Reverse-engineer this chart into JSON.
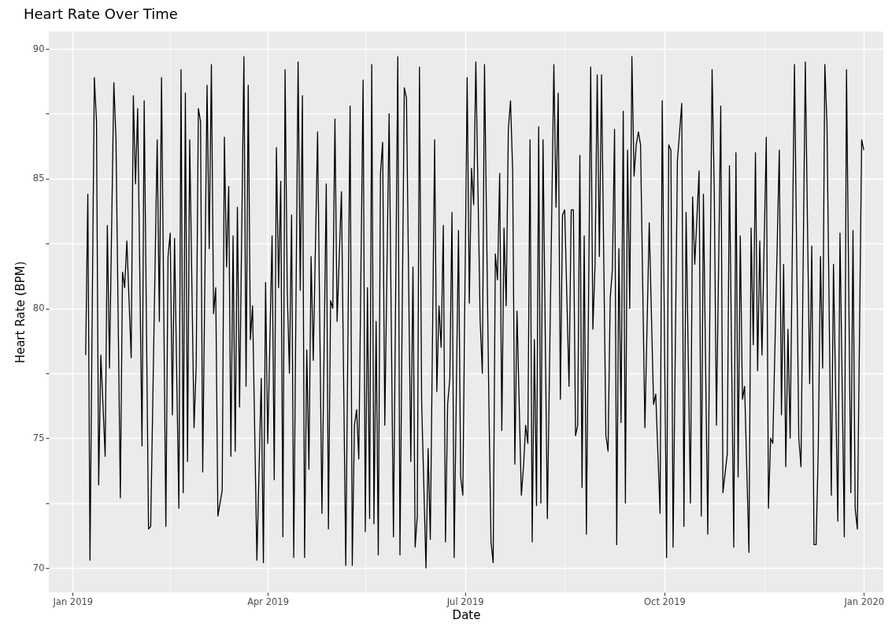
{
  "chart_data": {
    "type": "line",
    "title": "Heart Rate Over Time",
    "xlabel": "Date",
    "ylabel": "Heart Rate (BPM)",
    "xlim": [
      "2018-12-21",
      "2020-01-10"
    ],
    "xticks": [
      {
        "value": "2019-01-01",
        "label": "Jan 2019"
      },
      {
        "value": "2019-02-15",
        "label": null
      },
      {
        "value": "2019-04-01",
        "label": "Apr 2019"
      },
      {
        "value": "2019-05-16",
        "label": null
      },
      {
        "value": "2019-07-01",
        "label": "Jul 2019"
      },
      {
        "value": "2019-08-16",
        "label": null
      },
      {
        "value": "2019-10-01",
        "label": "Oct 2019"
      },
      {
        "value": "2019-11-16",
        "label": null
      },
      {
        "value": "2020-01-01",
        "label": "Jan 2020"
      }
    ],
    "ylim": [
      69.06,
      90.67
    ],
    "yticks": [
      70,
      {
        "value": 72.5,
        "label": null
      },
      75,
      {
        "value": 77.5,
        "label": null
      },
      80,
      {
        "value": 82.5,
        "label": null
      },
      85,
      {
        "value": 87.5,
        "label": null
      },
      90
    ],
    "grid": true,
    "legend": false,
    "series": [
      {
        "color": "#000000",
        "x": [
          "2019-01-07",
          "2019-01-08",
          "2019-01-09",
          "2019-01-11",
          "2019-01-12",
          "2019-01-13",
          "2019-01-14",
          "2019-01-16",
          "2019-01-17",
          "2019-01-18",
          "2019-01-20",
          "2019-01-21",
          "2019-01-23",
          "2019-01-24",
          "2019-01-25",
          "2019-01-26",
          "2019-01-28",
          "2019-01-29",
          "2019-01-30",
          "2019-01-31",
          "2019-02-02",
          "2019-02-03",
          "2019-02-05",
          "2019-02-06",
          "2019-02-09",
          "2019-02-10",
          "2019-02-11",
          "2019-02-13",
          "2019-02-14",
          "2019-02-15",
          "2019-02-16",
          "2019-02-17",
          "2019-02-19",
          "2019-02-20",
          "2019-02-21",
          "2019-02-22",
          "2019-02-23",
          "2019-02-24",
          "2019-02-26",
          "2019-02-27",
          "2019-02-28",
          "2019-03-01",
          "2019-03-02",
          "2019-03-04",
          "2019-03-05",
          "2019-03-06",
          "2019-03-07",
          "2019-03-08",
          "2019-03-09",
          "2019-03-11",
          "2019-03-12",
          "2019-03-13",
          "2019-03-14",
          "2019-03-15",
          "2019-03-16",
          "2019-03-17",
          "2019-03-18",
          "2019-03-19",
          "2019-03-21",
          "2019-03-22",
          "2019-03-23",
          "2019-03-24",
          "2019-03-25",
          "2019-03-27",
          "2019-03-29",
          "2019-03-30",
          "2019-03-31",
          "2019-04-01",
          "2019-04-03",
          "2019-04-04",
          "2019-04-05",
          "2019-04-06",
          "2019-04-07",
          "2019-04-08",
          "2019-04-09",
          "2019-04-10",
          "2019-04-11",
          "2019-04-12",
          "2019-04-13",
          "2019-04-15",
          "2019-04-16",
          "2019-04-17",
          "2019-04-18",
          "2019-04-19",
          "2019-04-20",
          "2019-04-21",
          "2019-04-22",
          "2019-04-24",
          "2019-04-26",
          "2019-04-28",
          "2019-04-29",
          "2019-04-30",
          "2019-05-01",
          "2019-05-02",
          "2019-05-03",
          "2019-05-05",
          "2019-05-07",
          "2019-05-09",
          "2019-05-10",
          "2019-05-11",
          "2019-05-12",
          "2019-05-13",
          "2019-05-15",
          "2019-05-16",
          "2019-05-17",
          "2019-05-18",
          "2019-05-19",
          "2019-05-20",
          "2019-05-21",
          "2019-05-22",
          "2019-05-23",
          "2019-05-24",
          "2019-05-25",
          "2019-05-27",
          "2019-05-29",
          "2019-05-31",
          "2019-06-01",
          "2019-06-03",
          "2019-06-04",
          "2019-06-06",
          "2019-06-07",
          "2019-06-08",
          "2019-06-09",
          "2019-06-10",
          "2019-06-11",
          "2019-06-13",
          "2019-06-14",
          "2019-06-15",
          "2019-06-17",
          "2019-06-18",
          "2019-06-19",
          "2019-06-20",
          "2019-06-21",
          "2019-06-22",
          "2019-06-23",
          "2019-06-24",
          "2019-06-25",
          "2019-06-26",
          "2019-06-28",
          "2019-06-29",
          "2019-06-30",
          "2019-07-02",
          "2019-07-03",
          "2019-07-04",
          "2019-07-05",
          "2019-07-06",
          "2019-07-08",
          "2019-07-09",
          "2019-07-10",
          "2019-07-12",
          "2019-07-13",
          "2019-07-14",
          "2019-07-15",
          "2019-07-16",
          "2019-07-17",
          "2019-07-18",
          "2019-07-19",
          "2019-07-20",
          "2019-07-21",
          "2019-07-22",
          "2019-07-23",
          "2019-07-24",
          "2019-07-25",
          "2019-07-27",
          "2019-07-28",
          "2019-07-29",
          "2019-07-30",
          "2019-07-31",
          "2019-08-01",
          "2019-08-02",
          "2019-08-03",
          "2019-08-04",
          "2019-08-05",
          "2019-08-06",
          "2019-08-08",
          "2019-08-11",
          "2019-08-12",
          "2019-08-13",
          "2019-08-14",
          "2019-08-15",
          "2019-08-16",
          "2019-08-18",
          "2019-08-19",
          "2019-08-20",
          "2019-08-21",
          "2019-08-22",
          "2019-08-23",
          "2019-08-24",
          "2019-08-25",
          "2019-08-26",
          "2019-08-28",
          "2019-08-29",
          "2019-08-30",
          "2019-08-31",
          "2019-09-01",
          "2019-09-02",
          "2019-09-04",
          "2019-09-05",
          "2019-09-06",
          "2019-09-07",
          "2019-09-08",
          "2019-09-09",
          "2019-09-10",
          "2019-09-11",
          "2019-09-12",
          "2019-09-13",
          "2019-09-14",
          "2019-09-15",
          "2019-09-16",
          "2019-09-17",
          "2019-09-18",
          "2019-09-19",
          "2019-09-20",
          "2019-09-22",
          "2019-09-24",
          "2019-09-26",
          "2019-09-27",
          "2019-09-29",
          "2019-09-30",
          "2019-10-02",
          "2019-10-03",
          "2019-10-04",
          "2019-10-05",
          "2019-10-07",
          "2019-10-09",
          "2019-10-10",
          "2019-10-11",
          "2019-10-13",
          "2019-10-14",
          "2019-10-15",
          "2019-10-17",
          "2019-10-18",
          "2019-10-19",
          "2019-10-21",
          "2019-10-23",
          "2019-10-24",
          "2019-10-25",
          "2019-10-27",
          "2019-10-28",
          "2019-10-30",
          "2019-10-31",
          "2019-11-02",
          "2019-11-03",
          "2019-11-04",
          "2019-11-05",
          "2019-11-06",
          "2019-11-07",
          "2019-11-09",
          "2019-11-10",
          "2019-11-11",
          "2019-11-12",
          "2019-11-13",
          "2019-11-14",
          "2019-11-15",
          "2019-11-17",
          "2019-11-18",
          "2019-11-19",
          "2019-11-20",
          "2019-11-23",
          "2019-11-24",
          "2019-11-25",
          "2019-11-26",
          "2019-11-27",
          "2019-11-28",
          "2019-11-30",
          "2019-12-02",
          "2019-12-03",
          "2019-12-05",
          "2019-12-07",
          "2019-12-08",
          "2019-12-09",
          "2019-12-10",
          "2019-12-11",
          "2019-12-12",
          "2019-12-13",
          "2019-12-14",
          "2019-12-15",
          "2019-12-17",
          "2019-12-18",
          "2019-12-20",
          "2019-12-21",
          "2019-12-23",
          "2019-12-24",
          "2019-12-26",
          "2019-12-27",
          "2019-12-28",
          "2019-12-29",
          "2019-12-31",
          "2020-01-01"
        ],
        "values": [
          78.2,
          84.4,
          70.3,
          88.9,
          87.2,
          73.2,
          78.2,
          74.3,
          83.2,
          77.7,
          88.7,
          86.5,
          72.7,
          81.4,
          80.8,
          82.6,
          78.1,
          88.2,
          84.8,
          87.7,
          74.7,
          88.0,
          71.5,
          71.6,
          86.5,
          79.5,
          88.9,
          71.6,
          82.0,
          82.9,
          75.9,
          82.7,
          72.3,
          89.2,
          72.9,
          88.3,
          74.1,
          86.5,
          75.4,
          77.8,
          87.7,
          87.2,
          73.7,
          88.6,
          82.3,
          89.4,
          79.8,
          80.8,
          72.0,
          73.0,
          86.6,
          81.6,
          84.7,
          74.3,
          82.8,
          74.5,
          83.9,
          76.2,
          89.7,
          77.0,
          88.6,
          78.8,
          80.1,
          70.3,
          77.3,
          70.2,
          81.0,
          74.8,
          82.8,
          73.4,
          86.2,
          80.8,
          84.9,
          71.2,
          89.2,
          80.7,
          77.5,
          83.6,
          70.4,
          89.5,
          80.7,
          88.2,
          70.4,
          78.4,
          73.8,
          82.0,
          78.0,
          86.8,
          72.1,
          84.8,
          71.5,
          80.3,
          80.0,
          87.3,
          79.5,
          84.5,
          70.1,
          87.8,
          70.1,
          75.5,
          76.1,
          74.2,
          88.8,
          71.4,
          80.8,
          71.9,
          89.4,
          71.7,
          79.5,
          70.5,
          85.2,
          86.4,
          75.5,
          87.5,
          71.2,
          89.7,
          70.5,
          88.5,
          88.1,
          74.1,
          81.6,
          70.8,
          72.0,
          89.3,
          76.4,
          70.0,
          74.6,
          71.1,
          86.5,
          76.8,
          80.1,
          78.5,
          83.2,
          71.0,
          76.3,
          77.3,
          83.7,
          70.4,
          83.0,
          73.5,
          72.8,
          88.9,
          80.2,
          85.4,
          84.0,
          89.5,
          79.5,
          77.5,
          89.4,
          76.5,
          71.0,
          70.2,
          82.1,
          81.1,
          85.2,
          75.3,
          83.1,
          80.1,
          86.9,
          88.0,
          85.3,
          74.0,
          79.9,
          72.8,
          73.9,
          75.5,
          74.8,
          86.5,
          71.0,
          78.8,
          72.4,
          87.0,
          72.5,
          86.5,
          71.9,
          89.4,
          83.9,
          88.3,
          76.5,
          83.6,
          83.8,
          77.0,
          83.8,
          83.8,
          75.1,
          75.5,
          85.9,
          73.1,
          82.8,
          71.3,
          89.3,
          79.2,
          81.7,
          89.0,
          82.0,
          89.0,
          75.1,
          74.5,
          80.4,
          81.5,
          86.9,
          70.9,
          82.3,
          75.6,
          87.6,
          72.5,
          86.1,
          80.0,
          89.7,
          85.1,
          86.3,
          86.8,
          86.3,
          75.4,
          83.3,
          76.3,
          76.7,
          72.1,
          88.0,
          70.4,
          86.3,
          86.1,
          70.8,
          85.7,
          87.9,
          71.6,
          83.7,
          72.5,
          84.3,
          81.7,
          85.3,
          72.0,
          84.4,
          71.3,
          89.2,
          84.5,
          75.5,
          87.8,
          72.9,
          74.4,
          85.5,
          70.8,
          86.0,
          73.5,
          82.8,
          76.5,
          77.0,
          70.6,
          83.1,
          78.6,
          86.0,
          77.6,
          82.6,
          78.2,
          86.6,
          72.3,
          75.0,
          74.8,
          86.1,
          75.9,
          81.7,
          73.9,
          79.2,
          75.0,
          89.4,
          75.0,
          73.9,
          89.5,
          77.1,
          82.4,
          70.9,
          70.9,
          74.7,
          82.0,
          77.7,
          89.4,
          87.1,
          72.8,
          81.7,
          71.8,
          82.9,
          71.2,
          89.2,
          72.9,
          83.0,
          72.3,
          71.5,
          86.5,
          86.1
        ]
      }
    ]
  }
}
